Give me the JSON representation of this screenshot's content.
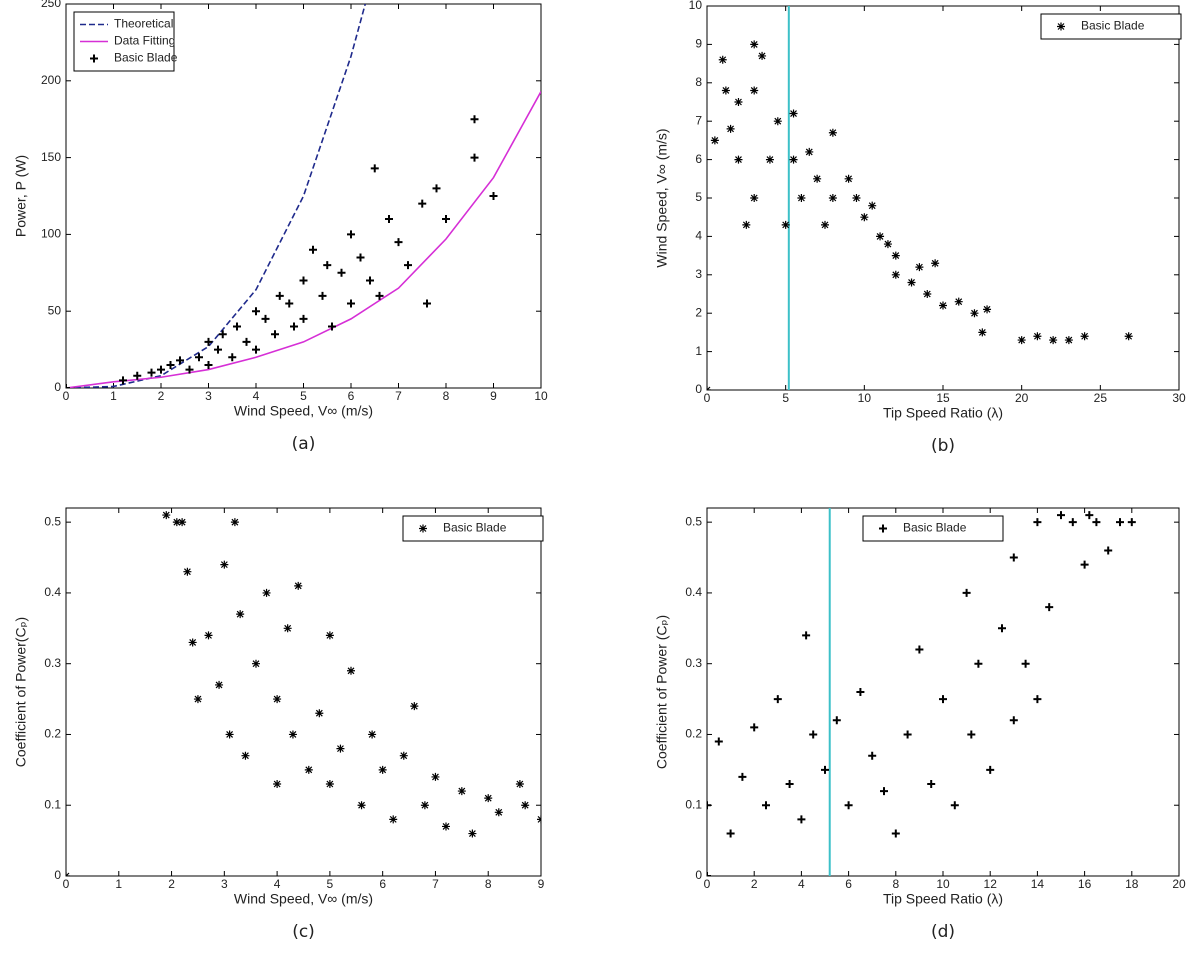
{
  "chart_data": [
    {
      "type": "scatter",
      "caption": "(a)",
      "xlabel": "Wind Speed,  V∞ (m/s)",
      "ylabel": "Power, P (W)",
      "xlim": [
        0,
        10
      ],
      "xticks": [
        0,
        1,
        2,
        3,
        4,
        5,
        6,
        7,
        8,
        9,
        10
      ],
      "ylim": [
        0,
        250
      ],
      "yticks": [
        0,
        50,
        100,
        150,
        200,
        250
      ],
      "legend": "upper left",
      "series": [
        {
          "name": "Theoretical",
          "color": "#1f2a8c",
          "line_style": "dashed",
          "x": [
            0,
            1,
            2,
            3,
            4,
            5,
            6,
            6.3
          ],
          "values": [
            0,
            1,
            8,
            27,
            64,
            125,
            216,
            250
          ]
        },
        {
          "name": "Data Fitting",
          "color": "#d62fd6",
          "line_style": "solid",
          "x": [
            0,
            1,
            2,
            3,
            4,
            5,
            6,
            7,
            8,
            9,
            10
          ],
          "values": [
            0,
            4,
            7,
            12,
            20,
            30,
            45,
            65,
            97,
            137,
            193
          ]
        },
        {
          "name": "Basic Blade",
          "color": "#000000",
          "marker": "plus",
          "x": [
            0,
            1.2,
            1.5,
            1.8,
            2,
            2.2,
            2.4,
            2.6,
            2.8,
            3,
            3,
            3.2,
            3.3,
            3.5,
            3.6,
            3.8,
            4,
            4,
            4.2,
            4.4,
            4.5,
            4.7,
            4.8,
            5,
            5,
            5.2,
            5.4,
            5.5,
            5.6,
            5.8,
            6,
            6,
            6.2,
            6.4,
            6.5,
            6.6,
            6.8,
            7,
            7.2,
            7.5,
            7.6,
            7.8,
            8,
            8.6,
            8.6,
            9
          ],
          "values": [
            0,
            5,
            8,
            10,
            12,
            15,
            18,
            12,
            20,
            15,
            30,
            25,
            35,
            20,
            40,
            30,
            25,
            50,
            45,
            35,
            60,
            55,
            40,
            70,
            45,
            90,
            60,
            80,
            40,
            75,
            55,
            100,
            85,
            70,
            143,
            60,
            110,
            95,
            80,
            120,
            55,
            130,
            110,
            175,
            150,
            125
          ]
        }
      ]
    },
    {
      "type": "scatter",
      "caption": "(b)",
      "xlabel": "Tip Speed Ratio (λ)",
      "ylabel": "Wind Speed, V∞ (m/s)",
      "xlim": [
        0,
        30
      ],
      "xticks": [
        0,
        5,
        10,
        15,
        20,
        25,
        30
      ],
      "ylim": [
        0,
        10
      ],
      "yticks": [
        0,
        1,
        2,
        3,
        4,
        5,
        6,
        7,
        8,
        9,
        10
      ],
      "legend": "upper right",
      "vline": 5.2,
      "vline_color": "#3cc0c8",
      "series": [
        {
          "name": "Basic Blade",
          "color": "#000000",
          "marker": "star",
          "x": [
            0,
            0.5,
            1,
            1.2,
            1.5,
            2,
            2,
            2.5,
            3,
            3,
            3.5,
            3,
            4,
            4.5,
            5,
            5.5,
            5.5,
            6,
            6.5,
            7,
            7.5,
            8,
            8,
            9,
            9.5,
            10,
            10.5,
            11,
            11.5,
            12,
            12,
            13,
            13.5,
            14,
            14.5,
            15,
            16,
            17,
            17.5,
            17.8,
            20,
            21,
            22,
            23,
            24,
            26.8
          ],
          "values": [
            0,
            6.5,
            8.6,
            7.8,
            6.8,
            7.5,
            6,
            4.3,
            9,
            7.8,
            8.7,
            5,
            6,
            7,
            4.3,
            7.2,
            6,
            5,
            6.2,
            5.5,
            4.3,
            6.7,
            5,
            5.5,
            5,
            4.5,
            4.8,
            4,
            3.8,
            3.5,
            3,
            2.8,
            3.2,
            2.5,
            3.3,
            2.2,
            2.3,
            2,
            1.5,
            2.1,
            1.3,
            1.4,
            1.3,
            1.3,
            1.4,
            1.4
          ]
        }
      ]
    },
    {
      "type": "scatter",
      "caption": "(c)",
      "xlabel": "Wind Speed,  V∞ (m/s)",
      "ylabel": "Coefficient of Power(Cₚ)",
      "xlim": [
        0,
        9
      ],
      "xticks": [
        0,
        1,
        2,
        3,
        4,
        5,
        6,
        7,
        8,
        9
      ],
      "ylim": [
        0,
        0.52
      ],
      "yticks": [
        0,
        0.1,
        0.2,
        0.3,
        0.4,
        0.5
      ],
      "legend": "upper right",
      "series": [
        {
          "name": "Basic Blade",
          "color": "#000000",
          "marker": "star",
          "x": [
            0,
            1.9,
            2.1,
            2.2,
            2.3,
            2.4,
            2.5,
            2.7,
            2.9,
            3,
            3.1,
            3.2,
            3.3,
            3.4,
            3.6,
            3.8,
            4,
            4,
            4.2,
            4.3,
            4.4,
            4.6,
            4.8,
            5,
            5,
            5.2,
            5.4,
            5.6,
            5.8,
            6,
            6.2,
            6.4,
            6.6,
            6.8,
            7,
            7.2,
            7.5,
            7.7,
            8,
            8.2,
            8.6,
            8.7,
            9
          ],
          "values": [
            0,
            0.51,
            0.5,
            0.5,
            0.43,
            0.33,
            0.25,
            0.34,
            0.27,
            0.44,
            0.2,
            0.5,
            0.37,
            0.17,
            0.3,
            0.4,
            0.13,
            0.25,
            0.35,
            0.2,
            0.41,
            0.15,
            0.23,
            0.34,
            0.13,
            0.18,
            0.29,
            0.1,
            0.2,
            0.15,
            0.08,
            0.17,
            0.24,
            0.1,
            0.14,
            0.07,
            0.12,
            0.06,
            0.11,
            0.09,
            0.13,
            0.1,
            0.08
          ]
        }
      ]
    },
    {
      "type": "scatter",
      "caption": "(d)",
      "xlabel": "Tip Speed Ratio (λ)",
      "ylabel": "Coefficient of Power (Cₚ)",
      "xlim": [
        0,
        20
      ],
      "xticks": [
        0,
        2,
        4,
        6,
        8,
        10,
        12,
        14,
        16,
        18,
        20
      ],
      "ylim": [
        0,
        0.52
      ],
      "yticks": [
        0,
        0.1,
        0.2,
        0.3,
        0.4,
        0.5
      ],
      "legend": "upper center",
      "vline": 5.2,
      "vline_color": "#3cc0c8",
      "series": [
        {
          "name": "Basic Blade",
          "color": "#000000",
          "marker": "plus",
          "x": [
            0,
            0,
            0.5,
            1,
            1.5,
            2,
            2.5,
            3,
            3.5,
            4,
            4.2,
            4.5,
            5,
            5.5,
            6,
            6.5,
            7,
            7.5,
            8,
            8.5,
            9,
            9.5,
            10,
            10.5,
            11,
            11.2,
            11.5,
            12,
            12,
            12.5,
            13,
            13,
            13.5,
            14,
            14,
            14.5,
            15,
            15.5,
            16,
            16.2,
            16.5,
            17,
            17.5,
            18
          ],
          "values": [
            0,
            0.1,
            0.19,
            0.06,
            0.14,
            0.21,
            0.1,
            0.25,
            0.13,
            0.08,
            0.34,
            0.2,
            0.15,
            0.22,
            0.1,
            0.26,
            0.17,
            0.12,
            0.06,
            0.2,
            0.32,
            0.13,
            0.25,
            0.1,
            0.4,
            0.2,
            0.3,
            0.5,
            0.15,
            0.35,
            0.45,
            0.22,
            0.3,
            0.5,
            0.25,
            0.38,
            0.51,
            0.5,
            0.44,
            0.51,
            0.5,
            0.46,
            0.5,
            0.5
          ]
        }
      ]
    }
  ]
}
